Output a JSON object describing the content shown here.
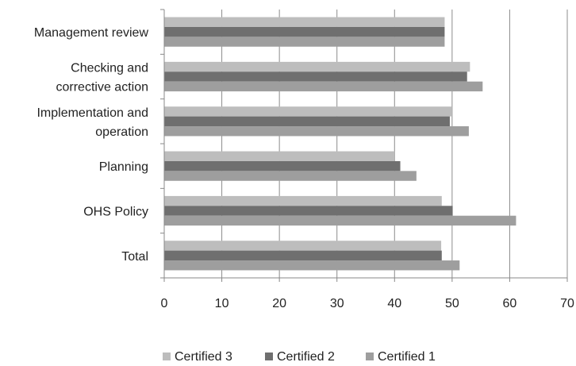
{
  "chart_data": {
    "type": "bar",
    "orientation": "horizontal",
    "title": "",
    "xlabel": "",
    "ylabel": "",
    "categories": [
      "Management review",
      "Checking and corrective action",
      "Implementation and operation",
      "Planning",
      "OHS Policy",
      "Total"
    ],
    "category_lines": [
      [
        "Management review"
      ],
      [
        "Checking and",
        "corrective action"
      ],
      [
        "Implementation and",
        "operation"
      ],
      [
        "Planning"
      ],
      [
        "OHS Policy"
      ],
      [
        "Total"
      ]
    ],
    "series": [
      {
        "name": "Certified 3",
        "color": "#bdbdbd",
        "values": [
          48.7,
          53.1,
          50.0,
          40.0,
          48.2,
          48.1
        ]
      },
      {
        "name": "Certified 2",
        "color": "#6f6f6f",
        "values": [
          48.7,
          52.6,
          49.6,
          41.0,
          50.1,
          48.2
        ]
      },
      {
        "name": "Certified 1",
        "color": "#9e9e9e",
        "values": [
          48.7,
          55.3,
          52.9,
          43.8,
          61.1,
          51.3
        ]
      }
    ],
    "xlim": [
      0,
      70
    ],
    "xticks": [
      0,
      10,
      20,
      30,
      40,
      50,
      60,
      70
    ],
    "grid": true,
    "legend_position": "bottom"
  }
}
